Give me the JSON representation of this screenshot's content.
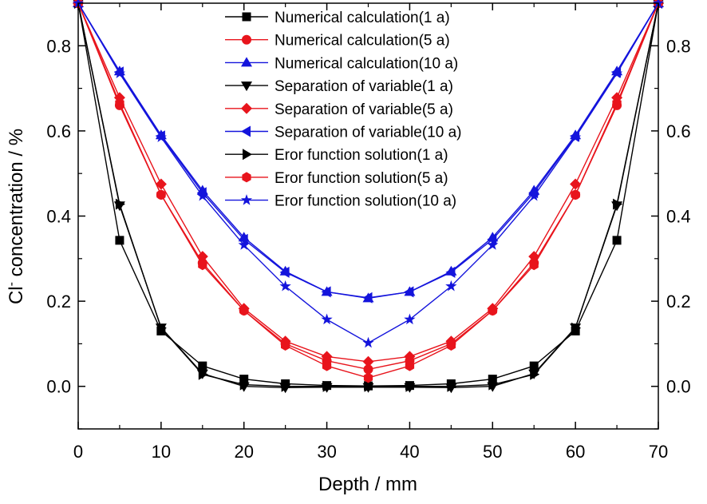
{
  "chart_data": {
    "type": "line",
    "xlabel": "Depth / mm",
    "ylabel": "Cl⁻ concentration / %",
    "ylabel_parts": {
      "base": "Cl",
      "superscript": "-",
      "rest": " concentration / %"
    },
    "xlim": [
      0,
      70
    ],
    "ylim": [
      -0.1,
      0.9
    ],
    "xticks": [
      0,
      10,
      20,
      30,
      40,
      50,
      60,
      70
    ],
    "yticks": [
      0.0,
      0.2,
      0.4,
      0.6,
      0.8
    ],
    "xtick_labels": [
      "0",
      "10",
      "20",
      "30",
      "40",
      "50",
      "60",
      "70"
    ],
    "ytick_labels": [
      "0.0",
      "0.2",
      "0.4",
      "0.6",
      "0.8"
    ],
    "right_axis_mirrored": true,
    "grid": false,
    "legend_position": "top-center",
    "x": [
      0,
      5,
      10,
      15,
      20,
      25,
      30,
      35,
      40,
      45,
      50,
      55,
      60,
      65,
      70
    ],
    "series": [
      {
        "name": "Numerical calculation(1 a)",
        "color": "#000000",
        "marker": "square",
        "values": [
          0.9,
          0.343,
          0.13,
          0.048,
          0.017,
          0.006,
          0.002,
          0.001,
          0.002,
          0.006,
          0.017,
          0.048,
          0.13,
          0.343,
          0.9
        ]
      },
      {
        "name": "Numerical calculation(5 a)",
        "color": "#e8141c",
        "marker": "circle",
        "values": [
          0.9,
          0.66,
          0.45,
          0.29,
          0.178,
          0.1,
          0.06,
          0.04,
          0.06,
          0.1,
          0.178,
          0.29,
          0.45,
          0.66,
          0.9
        ]
      },
      {
        "name": "Numerical calculation(10 a)",
        "color": "#1414dc",
        "marker": "triangle-up",
        "values": [
          0.9,
          0.74,
          0.59,
          0.46,
          0.35,
          0.27,
          0.222,
          0.207,
          0.222,
          0.27,
          0.35,
          0.46,
          0.59,
          0.74,
          0.9
        ]
      },
      {
        "name": "Separation of variable(1 a)",
        "color": "#000000",
        "marker": "triangle-down",
        "values": [
          0.9,
          0.425,
          0.138,
          0.03,
          0.0,
          -0.003,
          -0.002,
          -0.002,
          -0.002,
          -0.003,
          0.0,
          0.03,
          0.138,
          0.425,
          0.9
        ]
      },
      {
        "name": "Separation of variable(5 a)",
        "color": "#e8141c",
        "marker": "diamond",
        "values": [
          0.9,
          0.678,
          0.475,
          0.305,
          0.183,
          0.106,
          0.07,
          0.058,
          0.07,
          0.106,
          0.183,
          0.305,
          0.475,
          0.678,
          0.9
        ]
      },
      {
        "name": "Separation of variable(10 a)",
        "color": "#1414dc",
        "marker": "triangle-left",
        "values": [
          0.9,
          0.738,
          0.588,
          0.455,
          0.345,
          0.268,
          0.222,
          0.208,
          0.222,
          0.268,
          0.345,
          0.455,
          0.588,
          0.738,
          0.9
        ]
      },
      {
        "name": "Eror function solution(1 a)",
        "color": "#000000",
        "marker": "triangle-right",
        "values": [
          0.9,
          0.428,
          0.137,
          0.028,
          0.004,
          0.0,
          0.0,
          0.0,
          0.0,
          0.0,
          0.004,
          0.028,
          0.137,
          0.428,
          0.9
        ]
      },
      {
        "name": "Eror function solution(5 a)",
        "color": "#e8141c",
        "marker": "hexagon",
        "values": [
          0.9,
          0.665,
          0.45,
          0.285,
          0.178,
          0.096,
          0.048,
          0.02,
          0.048,
          0.096,
          0.178,
          0.285,
          0.45,
          0.665,
          0.9
        ]
      },
      {
        "name": "Eror function solution(10 a)",
        "color": "#1414dc",
        "marker": "star",
        "values": [
          0.9,
          0.735,
          0.585,
          0.447,
          0.332,
          0.235,
          0.157,
          0.102,
          0.157,
          0.235,
          0.332,
          0.447,
          0.585,
          0.735,
          0.9
        ]
      }
    ]
  }
}
